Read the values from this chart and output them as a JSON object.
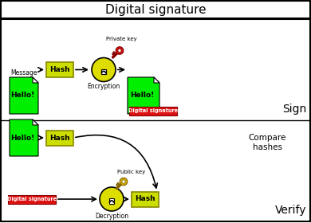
{
  "title": "Digital signature",
  "background": "#ffffff",
  "sign_label": "Sign",
  "verify_label": "Verify",
  "compare_label": "Compare\nhashes",
  "green": "#00ee00",
  "hash_bg": "#ccdd00",
  "enc_circle": "#dddd00",
  "key_red_fill": "#cc1111",
  "key_red_edge": "#880000",
  "key_yellow_fill": "#ccaa00",
  "key_yellow_edge": "#886600",
  "sig_red": "#dd1111",
  "private_key_label": "Private key",
  "public_key_label": "Public key",
  "encryption_label": "Encryption",
  "decryption_label": "Decryption",
  "message_label": "Message",
  "hello_label": "Hello!",
  "hash_label": "Hash",
  "digital_sig_label": "Digital signature"
}
